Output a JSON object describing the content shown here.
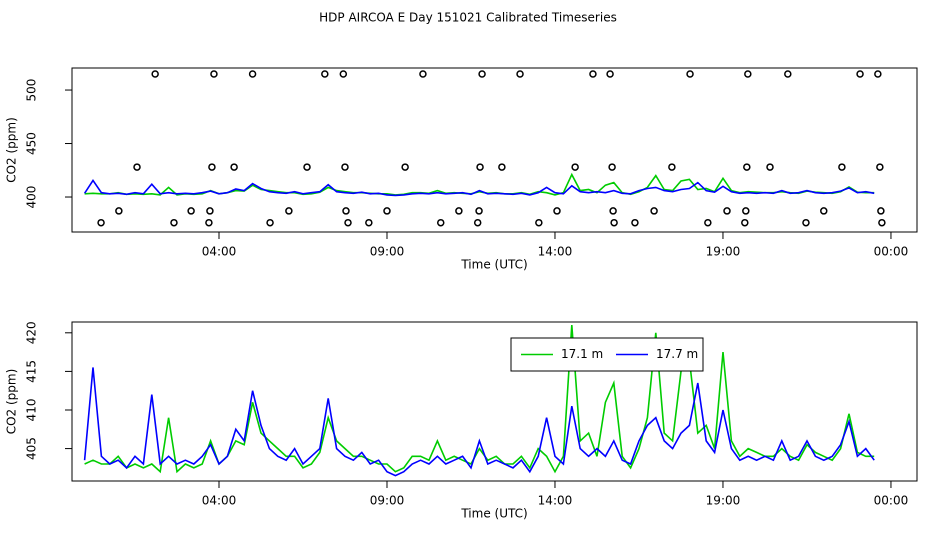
{
  "title": "HDP AIRCOA E  Day 151021  Calibrated Timeseries",
  "chart_data": [
    {
      "type": "line",
      "xlabel": "Time (UTC)",
      "ylabel": "CO2 (ppm)",
      "xlim": [
        -0.375,
        24.775
      ],
      "ylim": [
        367.3,
        520.6
      ],
      "xticks": [
        {
          "value": 4,
          "label": "04:00"
        },
        {
          "value": 9,
          "label": "09:00"
        },
        {
          "value": 14,
          "label": "14:00"
        },
        {
          "value": 19,
          "label": "19:00"
        },
        {
          "value": 24,
          "label": "00:00"
        }
      ],
      "yticks": [
        400,
        450,
        500
      ],
      "x": [
        0,
        0.25,
        0.5,
        0.75,
        1,
        1.25,
        1.5,
        1.75,
        2,
        2.25,
        2.5,
        2.75,
        3,
        3.25,
        3.5,
        3.75,
        4,
        4.25,
        4.5,
        4.75,
        5,
        5.25,
        5.5,
        5.75,
        6,
        6.25,
        6.5,
        6.75,
        7,
        7.25,
        7.5,
        7.75,
        8,
        8.25,
        8.5,
        8.75,
        9,
        9.25,
        9.5,
        9.75,
        10,
        10.25,
        10.5,
        10.75,
        11,
        11.25,
        11.5,
        11.75,
        12,
        12.25,
        12.5,
        12.75,
        13,
        13.25,
        13.5,
        13.75,
        14,
        14.25,
        14.5,
        14.75,
        15,
        15.25,
        15.5,
        15.75,
        16,
        16.25,
        16.5,
        16.75,
        17,
        17.25,
        17.5,
        17.75,
        18,
        18.25,
        18.5,
        18.75,
        19,
        19.25,
        19.5,
        19.75,
        20,
        20.25,
        20.5,
        20.75,
        21,
        21.25,
        21.5,
        21.75,
        22,
        22.25,
        22.5,
        22.75,
        23,
        23.25,
        23.5
      ],
      "series": [
        {
          "color": "#00cc00",
          "values": [
            403,
            403.5,
            403,
            403,
            404,
            402.5,
            403,
            402.5,
            403,
            402,
            409,
            402,
            403,
            402.5,
            403,
            406,
            403,
            404,
            406,
            405.5,
            411,
            407,
            406,
            405,
            404,
            404,
            402.5,
            403,
            404.5,
            409,
            406,
            405,
            404,
            404,
            403.5,
            403,
            403,
            402,
            402.5,
            404,
            404,
            403.5,
            406,
            403.5,
            404,
            403.5,
            403,
            405,
            403.5,
            404,
            403,
            403,
            404,
            402.5,
            405,
            404,
            402,
            404,
            421,
            406,
            407,
            404,
            411,
            413.5,
            404,
            402.5,
            405,
            409,
            420,
            407,
            406,
            415,
            416.5,
            407,
            408,
            405,
            417.5,
            406,
            404,
            405,
            404.5,
            404,
            404,
            405,
            404,
            403.5,
            405.5,
            404.5,
            404,
            403.5,
            405,
            409.5,
            404.5,
            404,
            404
          ]
        },
        {
          "color": "#0000ff",
          "values": [
            403.5,
            415.5,
            404,
            403,
            403.5,
            402.5,
            404,
            403,
            412,
            403,
            404,
            403,
            403.5,
            403,
            404,
            405.5,
            403,
            404,
            407.5,
            406,
            412.5,
            408,
            405,
            404,
            403.5,
            405,
            403,
            404,
            405,
            411.5,
            405,
            404,
            403.5,
            404.5,
            403,
            403.5,
            402,
            401.5,
            402,
            403,
            403.5,
            403,
            404,
            403,
            403.5,
            404,
            402.5,
            406,
            403,
            403.5,
            403,
            402.5,
            403.5,
            402,
            404,
            409,
            404,
            403,
            410.5,
            405,
            404,
            405,
            404,
            406,
            403.5,
            403,
            406,
            408,
            409,
            406,
            405,
            407,
            408,
            413.5,
            406,
            404.5,
            410,
            405,
            403.5,
            404,
            403.5,
            404,
            403.5,
            406,
            403.5,
            404,
            406,
            404,
            403.5,
            404,
            405.5,
            408.5,
            404,
            405,
            403.5
          ]
        }
      ],
      "markers": {
        "x": [
          2.1,
          3.85,
          5.0,
          7.15,
          7.7,
          10.07,
          11.83,
          12.96,
          15.13,
          15.64,
          18.02,
          19.74,
          20.93,
          23.08,
          23.61,
          1.56,
          3.79,
          4.45,
          6.62,
          7.75,
          9.54,
          11.77,
          12.42,
          14.6,
          15.7,
          17.48,
          19.71,
          20.4,
          22.54,
          23.67,
          1.02,
          3.17,
          3.73,
          6.08,
          7.78,
          9.0,
          11.14,
          11.74,
          14.06,
          15.73,
          16.95,
          19.12,
          19.68,
          22.0,
          23.7,
          0.49,
          2.66,
          3.7,
          5.52,
          7.84,
          8.46,
          10.6,
          11.7,
          13.52,
          15.76,
          16.38,
          18.55,
          19.65,
          21.47,
          23.73
        ],
        "y": [
          515,
          515,
          515,
          515,
          515,
          515,
          515,
          515,
          515,
          515,
          515,
          515,
          515,
          515,
          515,
          428,
          428,
          428,
          428,
          428,
          428,
          428,
          428,
          428,
          428,
          428,
          428,
          428,
          428,
          428,
          387,
          387,
          387,
          387,
          387,
          387,
          387,
          387,
          387,
          387,
          387,
          387,
          387,
          387,
          387,
          376,
          376,
          376,
          376,
          376,
          376,
          376,
          376,
          376,
          376,
          376,
          376,
          376,
          376,
          376
        ]
      }
    },
    {
      "type": "line",
      "xlabel": "Time (UTC)",
      "ylabel": "CO2 (ppm)",
      "xlim": [
        -0.375,
        24.775
      ],
      "ylim": [
        400.8,
        421.4
      ],
      "xticks": [
        {
          "value": 4,
          "label": "04:00"
        },
        {
          "value": 9,
          "label": "09:00"
        },
        {
          "value": 14,
          "label": "14:00"
        },
        {
          "value": 19,
          "label": "19:00"
        },
        {
          "value": 24,
          "label": "00:00"
        }
      ],
      "yticks": [
        405,
        410,
        415,
        420
      ],
      "legend": "top",
      "x": [
        0,
        0.25,
        0.5,
        0.75,
        1,
        1.25,
        1.5,
        1.75,
        2,
        2.25,
        2.5,
        2.75,
        3,
        3.25,
        3.5,
        3.75,
        4,
        4.25,
        4.5,
        4.75,
        5,
        5.25,
        5.5,
        5.75,
        6,
        6.25,
        6.5,
        6.75,
        7,
        7.25,
        7.5,
        7.75,
        8,
        8.25,
        8.5,
        8.75,
        9,
        9.25,
        9.5,
        9.75,
        10,
        10.25,
        10.5,
        10.75,
        11,
        11.25,
        11.5,
        11.75,
        12,
        12.25,
        12.5,
        12.75,
        13,
        13.25,
        13.5,
        13.75,
        14,
        14.25,
        14.5,
        14.75,
        15,
        15.25,
        15.5,
        15.75,
        16,
        16.25,
        16.5,
        16.75,
        17,
        17.25,
        17.5,
        17.75,
        18,
        18.25,
        18.5,
        18.75,
        19,
        19.25,
        19.5,
        19.75,
        20,
        20.25,
        20.5,
        20.75,
        21,
        21.25,
        21.5,
        21.75,
        22,
        22.25,
        22.5,
        22.75,
        23,
        23.25,
        23.5
      ],
      "series": [
        {
          "name": "17.1 m",
          "color": "#00cc00",
          "values": [
            403,
            403.5,
            403,
            403,
            404,
            402.5,
            403,
            402.5,
            403,
            402,
            409,
            402,
            403,
            402.5,
            403,
            406,
            403,
            404,
            406,
            405.5,
            411,
            407,
            406,
            405,
            404,
            404,
            402.5,
            403,
            404.5,
            409,
            406,
            405,
            404,
            404,
            403.5,
            403,
            403,
            402,
            402.5,
            404,
            404,
            403.5,
            406,
            403.5,
            404,
            403.5,
            403,
            405,
            403.5,
            404,
            403,
            403,
            404,
            402.5,
            405,
            404,
            402,
            404,
            421,
            406,
            407,
            404,
            411,
            413.5,
            404,
            402.5,
            405,
            409,
            420,
            407,
            406,
            415,
            416.5,
            407,
            408,
            405,
            417.5,
            406,
            404,
            405,
            404.5,
            404,
            404,
            405,
            404,
            403.5,
            405.5,
            404.5,
            404,
            403.5,
            405,
            409.5,
            404.5,
            404,
            404
          ]
        },
        {
          "name": "17.7 m",
          "color": "#0000ff",
          "values": [
            403.5,
            415.5,
            404,
            403,
            403.5,
            402.5,
            404,
            403,
            412,
            403,
            404,
            403,
            403.5,
            403,
            404,
            405.5,
            403,
            404,
            407.5,
            406,
            412.5,
            408,
            405,
            404,
            403.5,
            405,
            403,
            404,
            405,
            411.5,
            405,
            404,
            403.5,
            404.5,
            403,
            403.5,
            402,
            401.5,
            402,
            403,
            403.5,
            403,
            404,
            403,
            403.5,
            404,
            402.5,
            406,
            403,
            403.5,
            403,
            402.5,
            403.5,
            402,
            404,
            409,
            404,
            403,
            410.5,
            405,
            404,
            405,
            404,
            406,
            403.5,
            403,
            406,
            408,
            409,
            406,
            405,
            407,
            408,
            413.5,
            406,
            404.5,
            410,
            405,
            403.5,
            404,
            403.5,
            404,
            403.5,
            406,
            403.5,
            404,
            406,
            404,
            403.5,
            404,
            405.5,
            408.5,
            404,
            405,
            403.5
          ]
        }
      ]
    }
  ]
}
